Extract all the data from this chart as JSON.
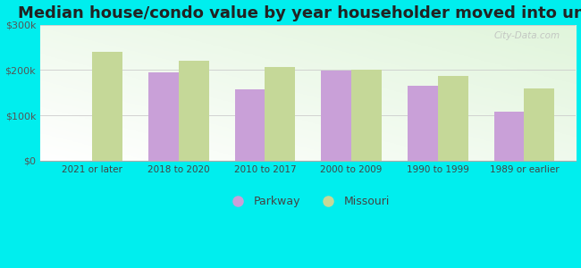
{
  "title": "Median house/condo value by year householder moved into unit",
  "categories": [
    "2021 or later",
    "2018 to 2020",
    "2010 to 2017",
    "2000 to 2009",
    "1990 to 1999",
    "1989 or earlier"
  ],
  "parkway_values": [
    null,
    195000,
    158000,
    198000,
    165000,
    108000
  ],
  "missouri_values": [
    240000,
    220000,
    207000,
    200000,
    188000,
    160000
  ],
  "parkway_color": "#c9a0d8",
  "missouri_color": "#c5d898",
  "background_color": "#00eeee",
  "plot_bg_color": "#e8f5e2",
  "ylim": [
    0,
    300000
  ],
  "yticks": [
    0,
    100000,
    200000,
    300000
  ],
  "ytick_labels": [
    "$0",
    "$100k",
    "$200k",
    "$300k"
  ],
  "bar_width": 0.35,
  "title_fontsize": 13,
  "legend_labels": [
    "Parkway",
    "Missouri"
  ],
  "watermark": "City-Data.com"
}
